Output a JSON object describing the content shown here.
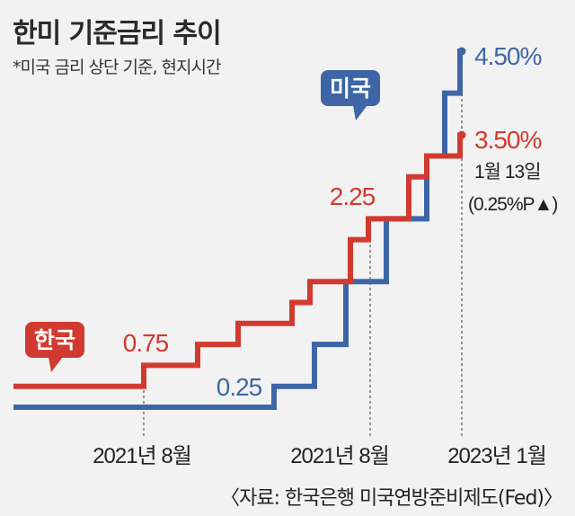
{
  "title": "한미 기준금리 추이",
  "subtitle": "*미국 금리 상단 기준, 현지시간",
  "source": "〈자료: 한국은행 미국연방준비제도(Fed)〉",
  "colors": {
    "korea": "#d23a2f",
    "us": "#3e66a6",
    "text": "#222222",
    "guide": "#555555"
  },
  "chart_data": {
    "type": "line",
    "style": "step",
    "x_ticks": [
      "2021년 8월",
      "2021년 8월",
      "2023년 1월"
    ],
    "ylim": [
      0,
      4.5
    ],
    "series": [
      {
        "name": "한국",
        "color": "#d23a2f",
        "values": [
          0.5,
          0.75,
          1.0,
          1.25,
          1.5,
          1.75,
          2.25,
          2.5,
          3.0,
          3.25,
          3.5
        ],
        "labels": [
          {
            "text": "0.75",
            "at": 1
          },
          {
            "text": "2.25",
            "at": 6
          },
          {
            "text": "3.50%",
            "at": 10
          }
        ],
        "annotation": [
          "1월 13일",
          "(0.25%P▲)"
        ]
      },
      {
        "name": "미국",
        "color": "#3e66a6",
        "values": [
          0.25,
          0.5,
          1.0,
          1.75,
          2.5,
          3.25,
          4.0,
          4.5
        ],
        "labels": [
          {
            "text": "0.25",
            "at": 0
          },
          {
            "text": "4.50%",
            "at": 7
          }
        ]
      }
    ]
  }
}
